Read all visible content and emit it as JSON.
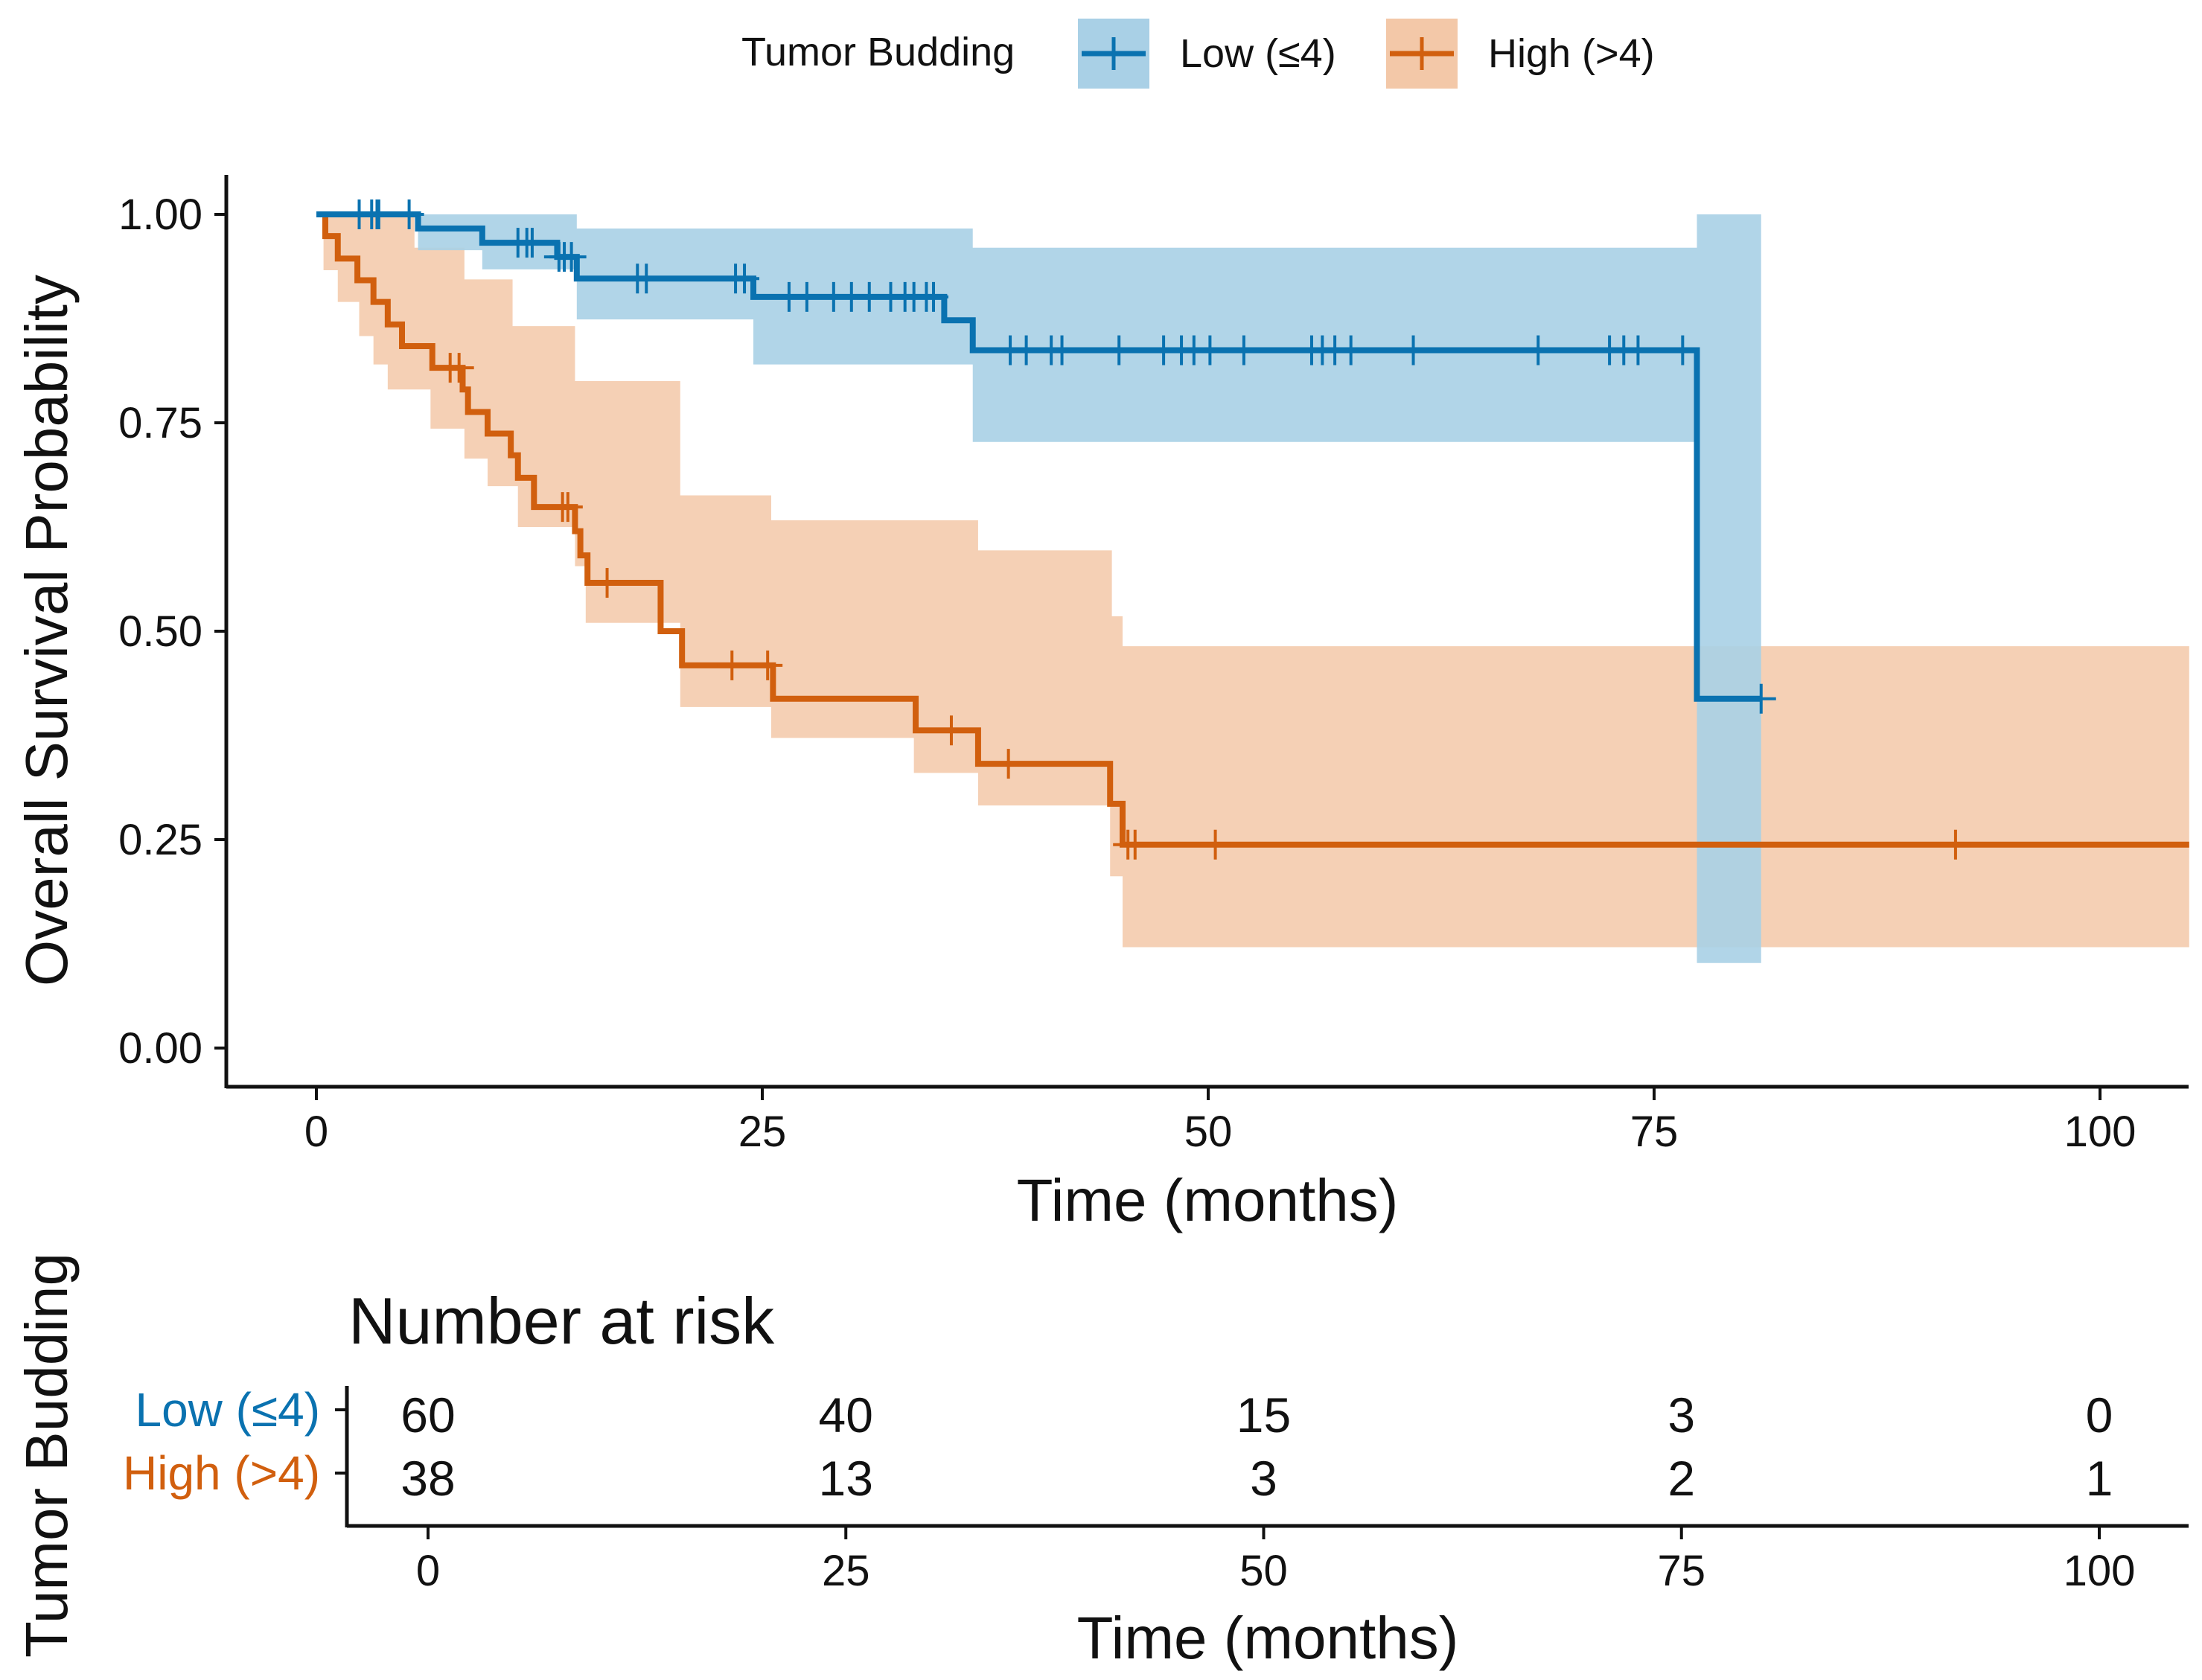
{
  "legend": {
    "title": "Tumor Budding",
    "items": [
      {
        "label": "Low (≤4)",
        "color": "#0a72b0",
        "fill": "#a9d0e6"
      },
      {
        "label": "High (>4)",
        "color": "#d15f0e",
        "fill": "#f3c8a8"
      }
    ]
  },
  "chart_data": [
    {
      "type": "line",
      "subtype": "kaplan-meier",
      "title": "",
      "xlabel": "Time (months)",
      "ylabel": "Overall Survival Probability",
      "xlim": [
        -5,
        105
      ],
      "ylim": [
        -0.05,
        1.05
      ],
      "xticks": [
        0,
        25,
        50,
        75,
        100
      ],
      "yticks": [
        0.0,
        0.25,
        0.5,
        0.75,
        1.0
      ],
      "ytick_labels": [
        "0.00",
        "0.25",
        "0.50",
        "0.75",
        "1.00"
      ],
      "grid": false,
      "legend_position": "top",
      "series": [
        {
          "name": "Low (≤4)",
          "color": "#0a72b0",
          "steps": [
            [
              0,
              1.0
            ],
            [
              5.7,
              0.983
            ],
            [
              9.3,
              0.966
            ],
            [
              13.5,
              0.949
            ],
            [
              14.6,
              0.923
            ],
            [
              23.6,
              0.923
            ],
            [
              24.5,
              0.901
            ],
            [
              35.2,
              0.873
            ],
            [
              36.8,
              0.837
            ],
            [
              77.3,
              0.837
            ],
            [
              77.4,
              0.419
            ],
            [
              81.0,
              0.419
            ]
          ],
          "ci_upper": [
            [
              0,
              1.0
            ],
            [
              5.7,
              1.0
            ],
            [
              14.6,
              0.983
            ],
            [
              24.5,
              0.983
            ],
            [
              36.8,
              0.96
            ],
            [
              77.3,
              0.96
            ],
            [
              77.4,
              1.0
            ],
            [
              81.0,
              1.0
            ]
          ],
          "ci_lower": [
            [
              0,
              1.0
            ],
            [
              5.7,
              0.957
            ],
            [
              9.3,
              0.934
            ],
            [
              14.6,
              0.874
            ],
            [
              24.5,
              0.82
            ],
            [
              36.8,
              0.727
            ],
            [
              77.3,
              0.727
            ],
            [
              77.4,
              0.102
            ],
            [
              81.0,
              0.102
            ]
          ],
          "censor_x": [
            2.4,
            3.1,
            3.4,
            3.5,
            5.2,
            11.3,
            11.8,
            12.1,
            13.6,
            13.9,
            14.3,
            18.0,
            18.5,
            23.5,
            24.0,
            26.5,
            27.5,
            29.0,
            30.0,
            31.0,
            32.2,
            33.0,
            33.5,
            34.2,
            34.6,
            38.9,
            39.8,
            41.2,
            41.8,
            45.0,
            47.5,
            48.5,
            49.2,
            50.1,
            52.0,
            55.8,
            56.4,
            57.1,
            58.0,
            61.5,
            68.5,
            72.5,
            73.3,
            74.1,
            76.6,
            81.0
          ],
          "at_risk": [
            60,
            40,
            15,
            3,
            0
          ]
        },
        {
          "name": "High (>4)",
          "color": "#d15f0e",
          "steps": [
            [
              0,
              1.0
            ],
            [
              0.5,
              0.974
            ],
            [
              1.2,
              0.947
            ],
            [
              2.3,
              0.921
            ],
            [
              3.2,
              0.895
            ],
            [
              4.0,
              0.868
            ],
            [
              4.8,
              0.842
            ],
            [
              6.5,
              0.816
            ],
            [
              8.2,
              0.79
            ],
            [
              8.5,
              0.763
            ],
            [
              9.6,
              0.737
            ],
            [
              10.9,
              0.711
            ],
            [
              11.3,
              0.684
            ],
            [
              12.2,
              0.649
            ],
            [
              14.5,
              0.62
            ],
            [
              14.8,
              0.591
            ],
            [
              15.2,
              0.558
            ],
            [
              19.3,
              0.5
            ],
            [
              20.5,
              0.459
            ],
            [
              25.6,
              0.419
            ],
            [
              33.6,
              0.381
            ],
            [
              37.1,
              0.341
            ],
            [
              44.5,
              0.293
            ],
            [
              45.2,
              0.244
            ],
            [
              105,
              0.244
            ]
          ],
          "ci_upper": [
            [
              0,
              1.0
            ],
            [
              5.5,
              0.96
            ],
            [
              8.3,
              0.922
            ],
            [
              11.0,
              0.866
            ],
            [
              14.5,
              0.8
            ],
            [
              20.4,
              0.663
            ],
            [
              25.5,
              0.633
            ],
            [
              37.1,
              0.597
            ],
            [
              44.6,
              0.518
            ],
            [
              45.2,
              0.482
            ],
            [
              105,
              0.482
            ]
          ],
          "ci_lower": [
            [
              0,
              1.0
            ],
            [
              0.4,
              0.933
            ],
            [
              1.2,
              0.895
            ],
            [
              2.4,
              0.854
            ],
            [
              3.2,
              0.82
            ],
            [
              4.0,
              0.79
            ],
            [
              6.4,
              0.743
            ],
            [
              8.3,
              0.707
            ],
            [
              9.6,
              0.674
            ],
            [
              11.3,
              0.625
            ],
            [
              14.5,
              0.578
            ],
            [
              15.1,
              0.51
            ],
            [
              20.4,
              0.409
            ],
            [
              25.5,
              0.372
            ],
            [
              33.5,
              0.33
            ],
            [
              37.1,
              0.291
            ],
            [
              44.5,
              0.206
            ],
            [
              45.2,
              0.121
            ],
            [
              105,
              0.121
            ]
          ],
          "censor_x": [
            7.5,
            8.0,
            13.8,
            14.1,
            16.3,
            23.3,
            25.3,
            35.6,
            38.8,
            45.5,
            45.9,
            50.4,
            91.9
          ],
          "at_risk": [
            38,
            13,
            3,
            2,
            1
          ]
        }
      ]
    },
    {
      "type": "table",
      "title": "Number at risk",
      "xlabel": "Time (months)",
      "ylabel": "Tumor Budding",
      "xlim": [
        -5,
        105
      ],
      "xticks": [
        0,
        25,
        50,
        75,
        100
      ],
      "rows": [
        {
          "name": "Low (≤4)",
          "values": [
            60,
            40,
            15,
            3,
            0
          ]
        },
        {
          "name": "High (>4)",
          "values": [
            38,
            13,
            3,
            2,
            1
          ]
        }
      ]
    }
  ]
}
